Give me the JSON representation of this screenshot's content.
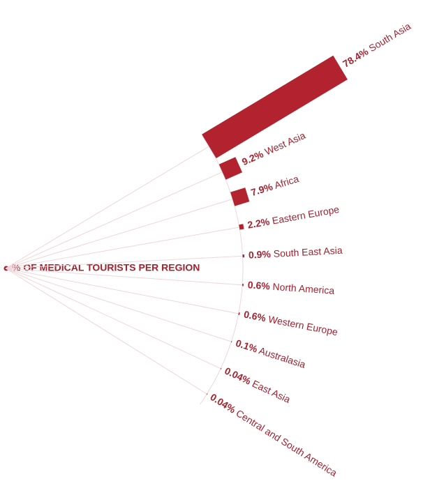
{
  "chart_data": {
    "type": "radial-bar",
    "title": "% OF MEDICAL TOURISTS PER REGION",
    "categories": [
      "South Asia",
      "West Asia",
      "Africa",
      "Eastern Europe",
      "South East Asia",
      "North America",
      "Western Europe",
      "Australasia",
      "East Asia",
      "Central and South America"
    ],
    "values": [
      78.4,
      9.2,
      7.9,
      2.2,
      0.9,
      0.6,
      0.6,
      0.1,
      0.04,
      0.04
    ],
    "value_labels": [
      "78.4%",
      "9.2%",
      "7.9%",
      "2.2%",
      "0.9%",
      "0.6%",
      "0.6%",
      "0.1%",
      "0.04%",
      "0.04%"
    ],
    "color": "#b3232f"
  }
}
